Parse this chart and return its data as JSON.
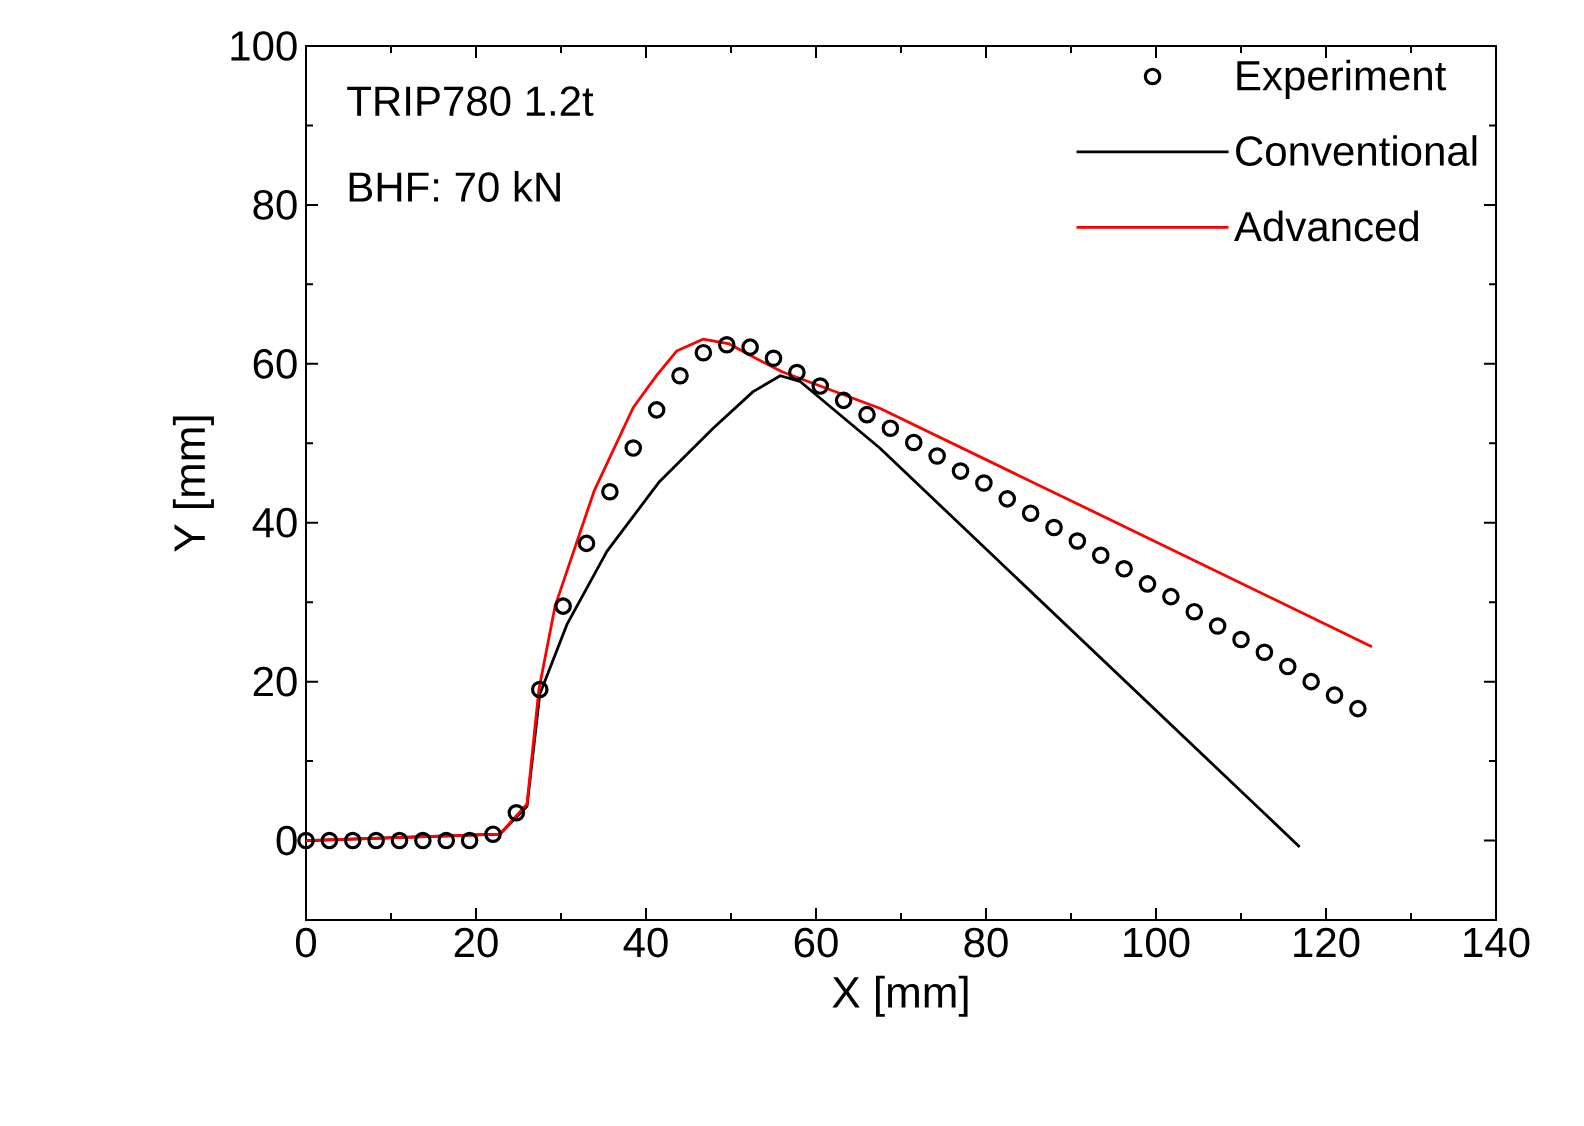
{
  "chart_data": {
    "type": "line",
    "xlabel": "X [mm]",
    "ylabel": "Y [mm]",
    "annotations": [
      "TRIP780 1.2t",
      "BHF: 70 kN"
    ],
    "xlim": [
      0,
      140
    ],
    "xticks": [
      0,
      20,
      40,
      60,
      80,
      100,
      120,
      140
    ],
    "ylim": [
      -10,
      100
    ],
    "yticks": [
      0,
      20,
      40,
      60,
      80,
      100
    ],
    "grid": false,
    "legend": "top right",
    "series": [
      {
        "name": "Experiment",
        "type": "scatter",
        "marker": "circle",
        "color": "#000000",
        "x": [
          0,
          2.75,
          5.5,
          8.25,
          11,
          13.75,
          16.5,
          19.25,
          22,
          24.75,
          27.5,
          30.25,
          33,
          35.75,
          38.5,
          41.25,
          44,
          46.75,
          49.5,
          52.25,
          55,
          57.75,
          60.5,
          63.25,
          66,
          68.75,
          71.5,
          74.25,
          77,
          79.75,
          82.5,
          85.25,
          88,
          90.75,
          93.5,
          96.25,
          99,
          101.75,
          104.5,
          107.25,
          110,
          112.75,
          115.5,
          118.25,
          121,
          123.75
        ],
        "values": [
          0,
          0,
          0,
          0,
          0,
          0,
          0,
          0,
          0.8,
          3.5,
          19.0,
          29.5,
          37.4,
          43.9,
          49.4,
          54.2,
          58.5,
          61.4,
          62.4,
          62.1,
          60.7,
          58.9,
          57.2,
          55.4,
          53.6,
          51.9,
          50.1,
          48.4,
          46.5,
          45.0,
          43.0,
          41.2,
          39.4,
          37.7,
          35.9,
          34.2,
          32.3,
          30.7,
          28.8,
          27.0,
          25.3,
          23.7,
          21.9,
          20.0,
          18.3,
          16.6
        ]
      },
      {
        "name": "Conventional",
        "marker": "none",
        "color": "#000000",
        "x": [
          0,
          22.8,
          26,
          27.5,
          30.7,
          35.4,
          41.6,
          47.9,
          52.6,
          55.8,
          58.1,
          67.5,
          116.9
        ],
        "values": [
          0,
          0.8,
          4.3,
          18.4,
          27.2,
          36.4,
          45.2,
          51.9,
          56.5,
          58.5,
          57.8,
          49.4,
          -0.8
        ]
      },
      {
        "name": "Advanced",
        "marker": "none",
        "color": "#ff0000",
        "x": [
          0,
          22.8,
          26,
          27.4,
          29.3,
          33.9,
          38.5,
          41.3,
          43.6,
          46.7,
          49.8,
          52.9,
          56,
          67.5,
          96.5,
          125.4
        ],
        "values": [
          0,
          0.8,
          4.6,
          19,
          29.5,
          44,
          54.5,
          58.6,
          61.6,
          63.1,
          62.5,
          60.7,
          59,
          54.4,
          39.4,
          24.4
        ]
      }
    ]
  }
}
